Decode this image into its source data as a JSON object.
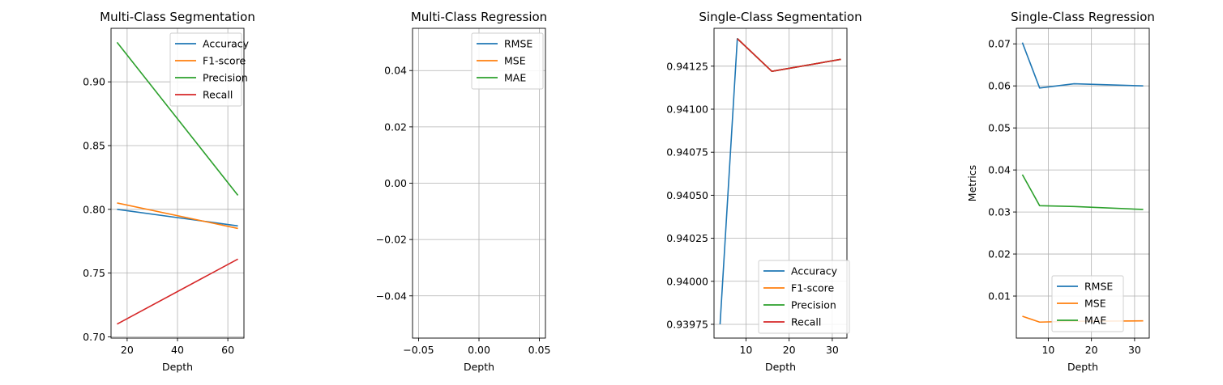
{
  "chart_data": [
    {
      "type": "line",
      "title": "Multi-Class Segmentation",
      "xlabel": "Depth",
      "ylabel": "",
      "xlim": [
        13.6,
        66.4
      ],
      "ylim": [
        0.699,
        0.942
      ],
      "xticks": [
        20,
        40,
        60
      ],
      "yticks": [
        0.7,
        0.75,
        0.8,
        0.85,
        0.9
      ],
      "yfmt": 2,
      "grid": true,
      "legend": "top-right",
      "x": [
        16,
        64
      ],
      "series": [
        {
          "name": "Accuracy",
          "color": "#1f77b4",
          "values": [
            0.8,
            0.787
          ]
        },
        {
          "name": "F1-score",
          "color": "#ff7f0e",
          "values": [
            0.805,
            0.785
          ]
        },
        {
          "name": "Precision",
          "color": "#2ca02c",
          "values": [
            0.931,
            0.811
          ]
        },
        {
          "name": "Recall",
          "color": "#d62728",
          "values": [
            0.71,
            0.761
          ]
        }
      ]
    },
    {
      "type": "line",
      "title": "Multi-Class Regression",
      "xlabel": "Depth",
      "ylabel": "",
      "xlim": [
        -0.055,
        0.055
      ],
      "ylim": [
        -0.055,
        0.055
      ],
      "xticks": [
        -0.05,
        0.0,
        0.05
      ],
      "xfmt": 2,
      "yticks": [
        -0.04,
        -0.02,
        0.0,
        0.02,
        0.04
      ],
      "yfmt": 2,
      "grid": true,
      "legend": "top-right",
      "x": [],
      "series": [
        {
          "name": "RMSE",
          "color": "#1f77b4",
          "values": []
        },
        {
          "name": "MSE",
          "color": "#ff7f0e",
          "values": []
        },
        {
          "name": "MAE",
          "color": "#2ca02c",
          "values": []
        }
      ]
    },
    {
      "type": "line",
      "title": "Single-Class Segmentation",
      "xlabel": "Depth",
      "ylabel": "",
      "xlim": [
        2.6,
        33.4
      ],
      "ylim": [
        0.93967,
        0.94147
      ],
      "xticks": [
        10,
        20,
        30
      ],
      "yticks": [
        0.93975,
        0.94,
        0.94025,
        0.9405,
        0.94075,
        0.941,
        0.94125
      ],
      "yfmt": 5,
      "grid": true,
      "legend": "lower-right",
      "x": [
        4,
        8,
        16,
        32
      ],
      "series": [
        {
          "name": "Accuracy",
          "color": "#1f77b4",
          "values": [
            0.93975,
            0.94141,
            0.94122,
            0.94129
          ]
        },
        {
          "name": "F1-score",
          "color": "#ff7f0e",
          "values": [
            null,
            0.94141,
            0.94122,
            0.94129
          ]
        },
        {
          "name": "Precision",
          "color": "#2ca02c",
          "values": [
            null,
            0.94141,
            0.94122,
            0.94129
          ]
        },
        {
          "name": "Recall",
          "color": "#d62728",
          "values": [
            null,
            0.94141,
            0.94122,
            0.94129
          ]
        }
      ]
    },
    {
      "type": "line",
      "title": "Single-Class Regression",
      "xlabel": "Depth",
      "ylabel": "Metrics",
      "xlim": [
        2.6,
        33.4
      ],
      "ylim": [
        0.0,
        0.0737
      ],
      "xticks": [
        10,
        20,
        30
      ],
      "yticks": [
        0.01,
        0.02,
        0.03,
        0.04,
        0.05,
        0.06,
        0.07
      ],
      "yfmt": 2,
      "grid": true,
      "legend": "lower-center",
      "x": [
        4,
        8,
        16,
        32
      ],
      "series": [
        {
          "name": "RMSE",
          "color": "#1f77b4",
          "values": [
            0.0703,
            0.0595,
            0.0605,
            0.06
          ]
        },
        {
          "name": "MSE",
          "color": "#ff7f0e",
          "values": [
            0.0052,
            0.0038,
            0.004,
            0.0041
          ]
        },
        {
          "name": "MAE",
          "color": "#2ca02c",
          "values": [
            0.0389,
            0.0315,
            0.0313,
            0.0306
          ]
        }
      ]
    }
  ]
}
